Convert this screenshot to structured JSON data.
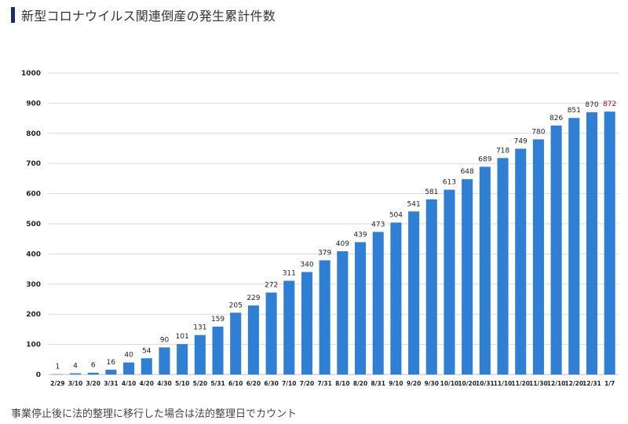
{
  "title": "新型コロナウイルス関連倒産の発生累計件数",
  "footnote": "事業停止後に法的整理に移行した場合は法的整理日でカウント",
  "colors": {
    "bar": "#2f7fd4",
    "label": "#222222",
    "highlight_label": "#c00000",
    "grid": "#d9d9d9",
    "accent": "#1f2a6e"
  },
  "chart_data": {
    "type": "bar",
    "title": "新型コロナウイルス関連倒産の発生累計件数",
    "xlabel": "",
    "ylabel": "",
    "ylim": [
      0,
      1000
    ],
    "yticks": [
      0,
      100,
      200,
      300,
      400,
      500,
      600,
      700,
      800,
      900,
      1000
    ],
    "grid": true,
    "legend": "none",
    "categories": [
      "2/29",
      "3/10",
      "3/20",
      "3/31",
      "4/10",
      "4/20",
      "4/30",
      "5/10",
      "5/20",
      "5/31",
      "6/10",
      "6/20",
      "6/30",
      "7/10",
      "7/20",
      "7/31",
      "8/10",
      "8/20",
      "8/31",
      "9/10",
      "9/20",
      "9/30",
      "10/10",
      "10/20",
      "10/31",
      "11/10",
      "11/20",
      "11/30",
      "12/10",
      "12/20",
      "12/31",
      "1/7"
    ],
    "values": [
      1,
      4,
      6,
      16,
      40,
      54,
      90,
      101,
      131,
      159,
      205,
      229,
      272,
      311,
      340,
      379,
      409,
      439,
      473,
      504,
      541,
      581,
      613,
      648,
      689,
      718,
      749,
      780,
      826,
      851,
      870,
      872
    ],
    "highlight_index": 31
  }
}
